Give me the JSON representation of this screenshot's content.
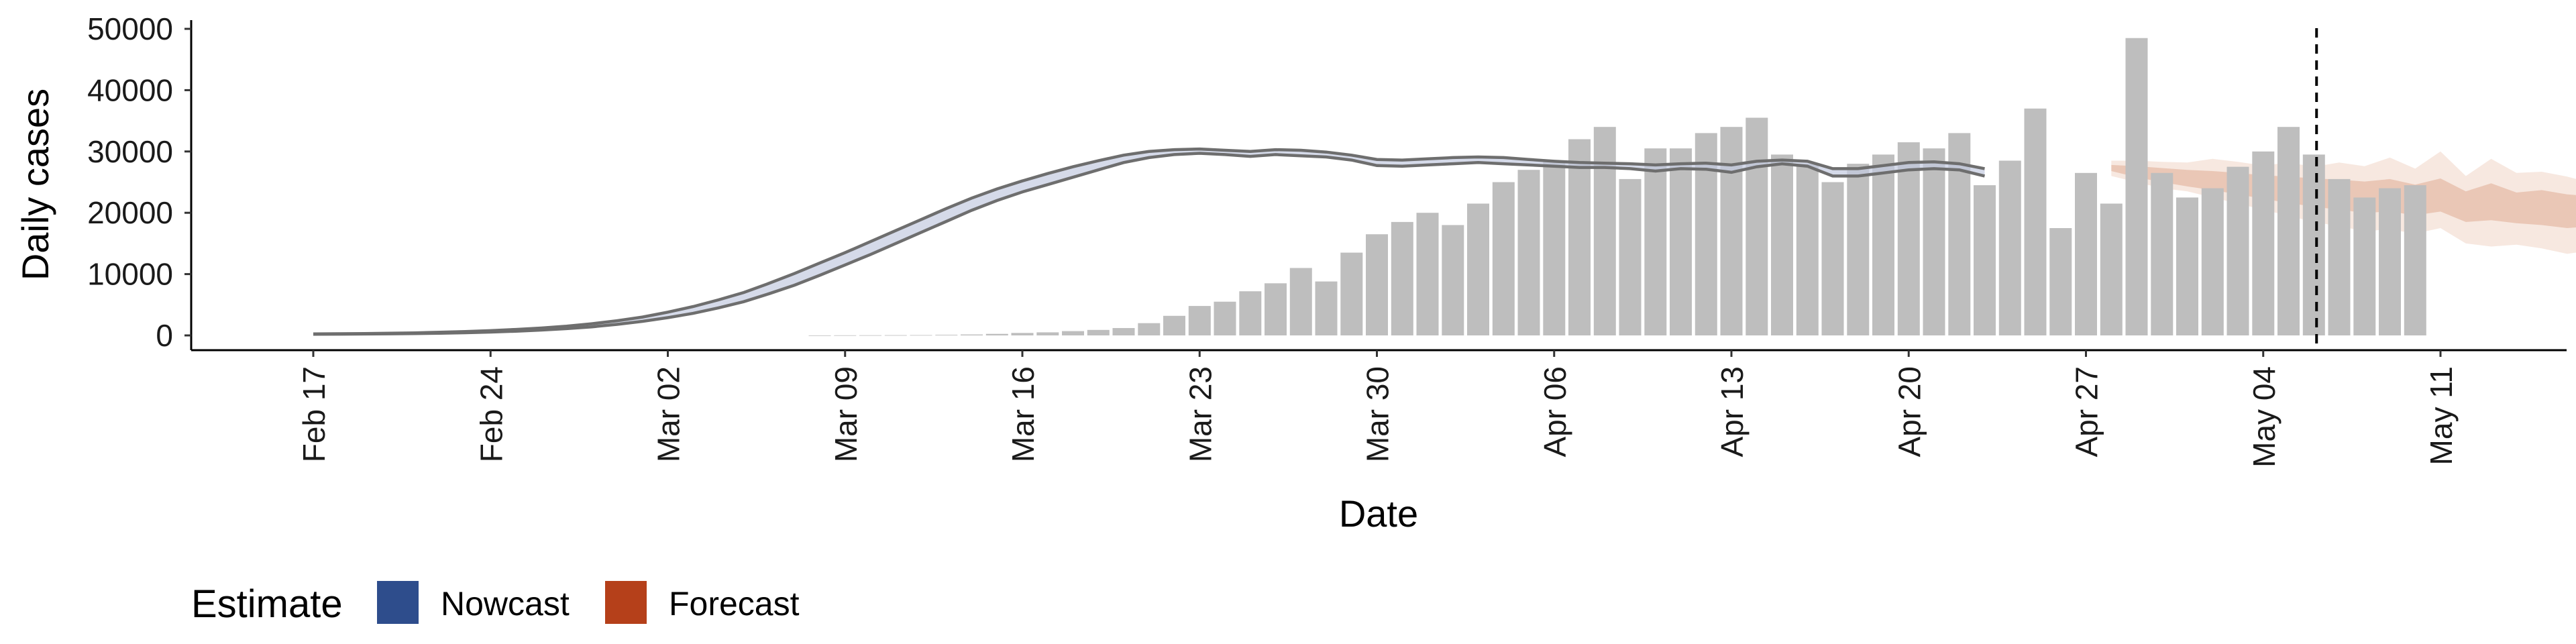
{
  "chart_data": {
    "type": "bar",
    "xlabel": "Date",
    "ylabel": "Daily cases",
    "ylim": [
      0,
      50000
    ],
    "y_ticks": [
      0,
      10000,
      20000,
      30000,
      40000,
      50000
    ],
    "y_tick_labels": [
      "0",
      "10000",
      "20000",
      "30000",
      "40000",
      "50000"
    ],
    "x_ticks": [
      "2020-02-17",
      "2020-02-24",
      "2020-03-02",
      "2020-03-09",
      "2020-03-16",
      "2020-03-23",
      "2020-03-30",
      "2020-04-06",
      "2020-04-13",
      "2020-04-20",
      "2020-04-27",
      "2020-05-04",
      "2020-05-11"
    ],
    "x_tick_labels": [
      "Feb 17",
      "Feb 24",
      "Mar 02",
      "Mar 09",
      "Mar 16",
      "Mar 23",
      "Mar 30",
      "Apr 06",
      "Apr 13",
      "Apr 20",
      "Apr 27",
      "May 04",
      "May 11"
    ],
    "grid": false,
    "legend_position": "bottom",
    "reported_cases": {
      "start_date": "2020-03-08",
      "values": [
        0,
        20,
        30,
        40,
        60,
        100,
        150,
        250,
        400,
        500,
        700,
        900,
        1200,
        2000,
        3200,
        4800,
        5500,
        7200,
        8500,
        11000,
        8800,
        13500,
        16500,
        18500,
        20000,
        18000,
        21500,
        25000,
        27000,
        28500,
        32000,
        34000,
        25500,
        30500,
        30500,
        33000,
        34000,
        35500,
        29500,
        28000,
        25000,
        28000,
        29500,
        31500,
        30500,
        33000,
        24500,
        28500,
        37000,
        17500,
        26500,
        21500,
        48500,
        26500,
        22500,
        24000,
        27500,
        30000,
        34000,
        29500,
        25500,
        22500,
        24000,
        24500
      ]
    },
    "nowcast": {
      "color": "#2e4d8c",
      "start_date": "2020-02-17",
      "lower": [
        200,
        210,
        230,
        260,
        300,
        360,
        440,
        550,
        690,
        870,
        1100,
        1400,
        1800,
        2300,
        2900,
        3600,
        4500,
        5500,
        6800,
        8200,
        9800,
        11500,
        13200,
        15000,
        16800,
        18600,
        20400,
        22000,
        23400,
        24600,
        25800,
        27000,
        28200,
        29000,
        29500,
        29700,
        29500,
        29200,
        29500,
        29300,
        29100,
        28600,
        27700,
        27600,
        27800,
        28000,
        28200,
        28000,
        27800,
        27600,
        27400,
        27400,
        27200,
        26800,
        27200,
        27100,
        26600,
        27500,
        28000,
        27600,
        26000,
        26000,
        26500,
        27000,
        27200,
        27000,
        26000
      ],
      "upper": [
        250,
        270,
        300,
        350,
        420,
        510,
        630,
        780,
        970,
        1200,
        1500,
        1900,
        2400,
        3000,
        3800,
        4700,
        5800,
        7000,
        8500,
        10100,
        11800,
        13500,
        15300,
        17100,
        18900,
        20700,
        22400,
        23900,
        25200,
        26400,
        27500,
        28500,
        29400,
        30000,
        30300,
        30400,
        30200,
        30000,
        30300,
        30200,
        29900,
        29400,
        28700,
        28600,
        28800,
        29000,
        29100,
        29000,
        28700,
        28400,
        28200,
        28100,
        28000,
        27800,
        28000,
        28100,
        27800,
        28400,
        28600,
        28400,
        27200,
        27200,
        27700,
        28200,
        28300,
        28000,
        27200
      ]
    },
    "forecast": {
      "color": "#b5401a",
      "start_date": "2020-04-28",
      "lower90": [
        26000,
        25000,
        24000,
        23500,
        22500,
        21500,
        20500,
        19500,
        18500,
        17800,
        17000,
        17300,
        16600,
        17500,
        15000,
        14500,
        14800,
        14200,
        13300,
        13900,
        14600
      ],
      "upper90": [
        28500,
        28500,
        28300,
        28200,
        28800,
        28300,
        27700,
        28200,
        27500,
        28200,
        27600,
        29000,
        27200,
        30000,
        26000,
        28800,
        26500,
        26700,
        25900,
        24800,
        26300
      ],
      "lower50": [
        26800,
        25800,
        25000,
        24300,
        23700,
        23000,
        22300,
        21600,
        21000,
        20500,
        20000,
        20200,
        19600,
        20200,
        18500,
        18800,
        18300,
        18000,
        17500,
        17800,
        18300
      ],
      "upper50": [
        27800,
        27600,
        27300,
        27000,
        26800,
        26500,
        26100,
        25900,
        25600,
        25400,
        25100,
        25500,
        24600,
        25600,
        23500,
        24800,
        23300,
        23700,
        23000,
        22700,
        23600
      ]
    },
    "estimate_date": "2020-05-06",
    "legend": {
      "title": "Estimate",
      "items": [
        {
          "label": "Nowcast",
          "color": "#2e4d8c"
        },
        {
          "label": "Forecast",
          "color": "#b5401a"
        }
      ]
    }
  }
}
